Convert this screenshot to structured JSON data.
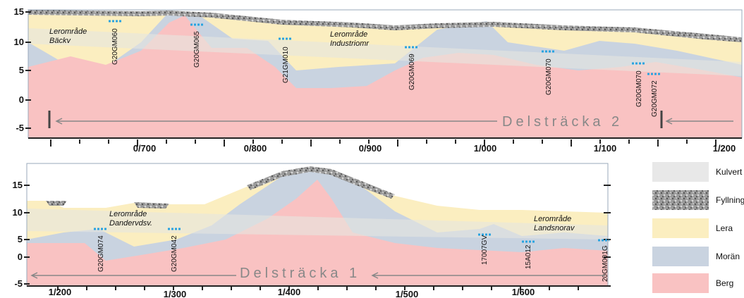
{
  "panels": [
    {
      "yticks": [
        15,
        10,
        5,
        0,
        -5
      ],
      "xticks": [
        "0/700",
        "0/800",
        "0/900",
        "1/000",
        "1/100",
        "1/200"
      ],
      "section": "Delsträcka 2",
      "areas": [
        [
          "Lerområde",
          "Bäckv"
        ],
        [
          "Lerområde",
          "Industriomr"
        ]
      ],
      "boreholes": [
        "G20GM060",
        "G20GM065",
        "G21GM010",
        "G20GM069",
        "G20GM070",
        "G20GM070",
        "G20GM072"
      ]
    },
    {
      "yticks": [
        15,
        10,
        5,
        0,
        -5
      ],
      "xticks": [
        "1/200",
        "1/300",
        "1/400",
        "1/500",
        "1/600"
      ],
      "section": "Delsträcka 1",
      "areas": [
        [
          "Lerområde",
          "Dandervdsv."
        ],
        [
          "Lerområde",
          "Landsnorav"
        ]
      ],
      "boreholes": [
        "G20GM074",
        "G20GM042",
        "17007GV",
        "15A012",
        "20GM001G"
      ]
    }
  ],
  "legend": [
    "Kulvert",
    "Fyllning",
    "Lera",
    "Morän",
    "Berg"
  ]
}
